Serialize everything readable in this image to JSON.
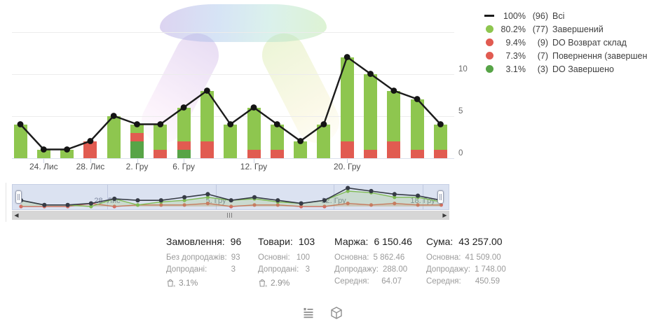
{
  "legend": {
    "items": [
      {
        "swatch": "line",
        "color": "#1b1b1b",
        "percent": "100%",
        "count": "(96)",
        "label": "Всі"
      },
      {
        "swatch": "dot",
        "color": "#8ec64f",
        "percent": "80.2%",
        "count": "(77)",
        "label": "Завершений"
      },
      {
        "swatch": "dot",
        "color": "#e15b51",
        "percent": "9.4%",
        "count": "(9)",
        "label": "DO Возврат склад"
      },
      {
        "swatch": "dot",
        "color": "#e15b51",
        "percent": "7.3%",
        "count": "(7)",
        "label": "Повернення (завершений)"
      },
      {
        "swatch": "dot",
        "color": "#57a447",
        "percent": "3.1%",
        "count": "(3)",
        "label": "DO Завершено"
      }
    ]
  },
  "chart_data": {
    "type": "bar",
    "stacked": true,
    "title": "",
    "xlabel": "",
    "ylabel": "",
    "ylim": [
      0,
      15
    ],
    "y_ticks": [
      "0",
      "5",
      "10"
    ],
    "y_tick_values": [
      0,
      5,
      10
    ],
    "grid": true,
    "legend_position": "top-right",
    "n_points": 19,
    "line_series": {
      "name": "Всі",
      "total": 96,
      "values": [
        4,
        1,
        1,
        2,
        5,
        4,
        4,
        6,
        8,
        4,
        6,
        4,
        2,
        4,
        12,
        10,
        8,
        7,
        4
      ],
      "color": "#1b1b1b"
    },
    "colors": {
      "green": "#8ec64f",
      "red": "#e15b51",
      "dkgreen": "#57a447"
    },
    "bar_segments": [
      [
        {
          "color": "green",
          "value": 4
        }
      ],
      [
        {
          "color": "green",
          "value": 1
        }
      ],
      [
        {
          "color": "green",
          "value": 1
        }
      ],
      [
        {
          "color": "red",
          "value": 2
        }
      ],
      [
        {
          "color": "green",
          "value": 5
        }
      ],
      [
        {
          "color": "dkgreen",
          "value": 2
        },
        {
          "color": "red",
          "value": 1
        },
        {
          "color": "green",
          "value": 1
        }
      ],
      [
        {
          "color": "red",
          "value": 1
        },
        {
          "color": "green",
          "value": 3
        }
      ],
      [
        {
          "color": "dkgreen",
          "value": 1
        },
        {
          "color": "red",
          "value": 1
        },
        {
          "color": "green",
          "value": 4
        }
      ],
      [
        {
          "color": "red",
          "value": 2
        },
        {
          "color": "green",
          "value": 6
        }
      ],
      [
        {
          "color": "green",
          "value": 4
        }
      ],
      [
        {
          "color": "red",
          "value": 1
        },
        {
          "color": "green",
          "value": 5
        }
      ],
      [
        {
          "color": "red",
          "value": 1
        },
        {
          "color": "green",
          "value": 3
        }
      ],
      [
        {
          "color": "green",
          "value": 2
        }
      ],
      [
        {
          "color": "green",
          "value": 4
        }
      ],
      [
        {
          "color": "red",
          "value": 2
        },
        {
          "color": "green",
          "value": 10
        }
      ],
      [
        {
          "color": "red",
          "value": 1
        },
        {
          "color": "green",
          "value": 9
        }
      ],
      [
        {
          "color": "red",
          "value": 2
        },
        {
          "color": "green",
          "value": 6
        }
      ],
      [
        {
          "color": "red",
          "value": 1
        },
        {
          "color": "green",
          "value": 6
        }
      ],
      [
        {
          "color": "red",
          "value": 1
        },
        {
          "color": "green",
          "value": 3
        }
      ]
    ],
    "x_tick_labels": [
      "24. Лис",
      "28. Лис",
      "2. Гру",
      "6. Гру",
      "12. Гру",
      "20. Гру"
    ],
    "x_tick_indices": [
      1,
      3,
      5,
      7,
      10,
      14
    ]
  },
  "minimap": {
    "labels": [
      "28. Лис",
      "5. Гру",
      "12. Гру",
      "18. Гру"
    ],
    "line_colors": {
      "all": "#363b46",
      "green": "#7fbb53",
      "red": "#d66a62"
    }
  },
  "scrollbar": {
    "left_arrow": "◀",
    "right_arrow": "▶"
  },
  "stats": {
    "columns": [
      {
        "title": "Замовлення:",
        "value": "96",
        "rows": [
          {
            "label": "Без допродажів:",
            "value": "93"
          },
          {
            "label": "Допродані:",
            "value": "3"
          }
        ],
        "upsell": "3.1%"
      },
      {
        "title": "Товари:",
        "value": "103",
        "rows": [
          {
            "label": "Основні:",
            "value": "100"
          },
          {
            "label": "Допродані:",
            "value": "3"
          }
        ],
        "upsell": "2.9%"
      },
      {
        "title": "Маржа:",
        "value": "6 150.46",
        "rows": [
          {
            "label": "Основна:",
            "value": "5 862.46"
          },
          {
            "label": "Допродажу:",
            "value": "288.00"
          },
          {
            "label": "Середня:",
            "value": "64.07"
          }
        ]
      },
      {
        "title": "Сума:",
        "value": "43 257.00",
        "rows": [
          {
            "label": "Основна:",
            "value": "41 509.00"
          },
          {
            "label": "Допродажу:",
            "value": "1 748.00"
          },
          {
            "label": "Середня:",
            "value": "450.59"
          }
        ]
      }
    ]
  },
  "footer": {
    "icons": [
      "orders-log-icon",
      "package-icon"
    ]
  }
}
